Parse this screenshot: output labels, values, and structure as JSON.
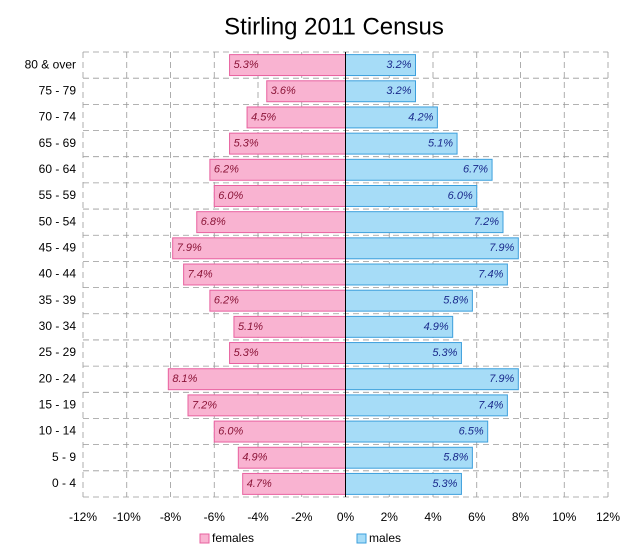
{
  "chart_data": {
    "type": "pyramid",
    "title": "Stirling 2011 Census",
    "categories": [
      "80 & over",
      "75 - 79",
      "70 - 74",
      "65 - 69",
      "60 - 64",
      "55 - 59",
      "50 - 54",
      "45 - 49",
      "40 - 44",
      "35 - 39",
      "30 - 34",
      "25 - 29",
      "20 - 24",
      "15 - 19",
      "10 - 14",
      "5 - 9",
      "0 - 4"
    ],
    "series": [
      {
        "name": "females",
        "color": "#f9b3d1",
        "edge": "#e8609f",
        "label_color": "#8b1538",
        "values": [
          5.3,
          3.6,
          4.5,
          5.3,
          6.2,
          6.0,
          6.8,
          7.9,
          7.4,
          6.2,
          5.1,
          5.3,
          8.1,
          7.2,
          6.0,
          4.9,
          4.7
        ],
        "value_labels": [
          "5.3%",
          "3.6%",
          "4.5%",
          "5.3%",
          "6.2%",
          "6.0%",
          "6.8%",
          "7.9%",
          "7.4%",
          "6.2%",
          "5.1%",
          "5.3%",
          "8.1%",
          "7.2%",
          "6.0%",
          "4.9%",
          "4.7%"
        ]
      },
      {
        "name": "males",
        "color": "#a6dcf7",
        "edge": "#3c9fdc",
        "label_color": "#1a2a8c",
        "values": [
          3.2,
          3.2,
          4.2,
          5.1,
          6.7,
          6.0,
          7.2,
          7.9,
          7.4,
          5.8,
          4.9,
          5.3,
          7.9,
          7.4,
          6.5,
          5.8,
          5.3
        ],
        "value_labels": [
          "3.2%",
          "3.2%",
          "4.2%",
          "5.1%",
          "6.7%",
          "6.0%",
          "7.2%",
          "7.9%",
          "7.4%",
          "5.8%",
          "4.9%",
          "5.3%",
          "7.9%",
          "7.4%",
          "6.5%",
          "5.8%",
          "5.3%"
        ]
      }
    ],
    "xlim": [
      -12,
      12
    ],
    "xticks": [
      {
        "value": -12,
        "label": "-12%"
      },
      {
        "value": -10,
        "label": "-10%"
      },
      {
        "value": -8,
        "label": "-8%"
      },
      {
        "value": -6,
        "label": "-6%"
      },
      {
        "value": -4,
        "label": "-4%"
      },
      {
        "value": -2,
        "label": "-2%"
      },
      {
        "value": 0,
        "label": "0%"
      },
      {
        "value": 2,
        "label": "2%"
      },
      {
        "value": 4,
        "label": "4%"
      },
      {
        "value": 6,
        "label": "6%"
      },
      {
        "value": 8,
        "label": "8%"
      },
      {
        "value": 10,
        "label": "10%"
      },
      {
        "value": 12,
        "label": "12%"
      }
    ],
    "grid": true,
    "legend": "bottom"
  }
}
